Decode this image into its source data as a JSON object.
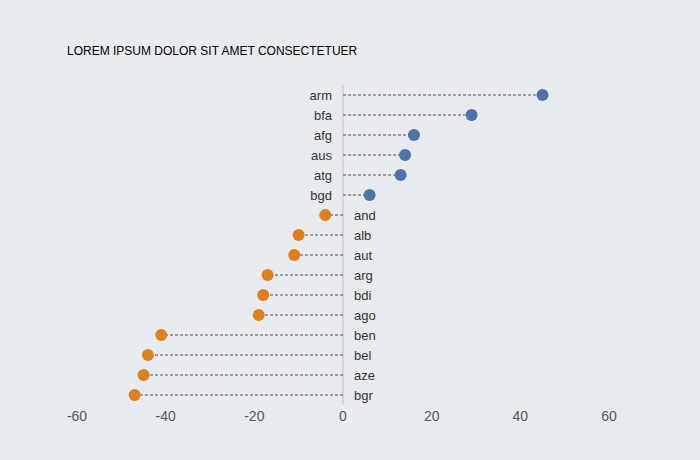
{
  "chart_data": {
    "type": "lollipop",
    "title": "LOREM IPSUM DOLOR SIT AMET CONSECTETUER",
    "orientation": "horizontal",
    "categories": [
      "arm",
      "bfa",
      "afg",
      "aus",
      "atg",
      "bgd",
      "and",
      "alb",
      "aut",
      "arg",
      "bdi",
      "ago",
      "ben",
      "bel",
      "aze",
      "bgr"
    ],
    "values": [
      45,
      29,
      16,
      14,
      13,
      6,
      -4,
      -10,
      -11,
      -17,
      -18,
      -19,
      -41,
      -44,
      -45,
      -47
    ],
    "colors": [
      "#4e73a6",
      "#4e73a6",
      "#4e73a6",
      "#4e73a6",
      "#4e73a6",
      "#4e73a6",
      "#e0801c",
      "#e0801c",
      "#e0801c",
      "#e0801c",
      "#e0801c",
      "#e0801c",
      "#e0801c",
      "#e0801c",
      "#e0801c",
      "#e0801c"
    ],
    "xlim": [
      -60,
      60
    ],
    "xticks": [
      -60,
      -40,
      -20,
      0,
      20,
      40,
      60
    ],
    "marker": "circle",
    "line_style": "dashed",
    "grid": false
  }
}
